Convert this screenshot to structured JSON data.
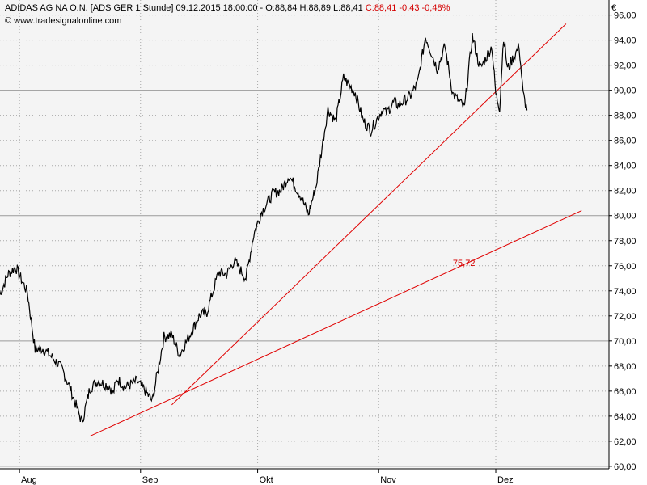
{
  "header": {
    "instrument": "ADIDAS AG NA O.N. [ADS GER",
    "interval": "1 Stunde]",
    "datetime": "09.12.2015 18:00:00",
    "ohl": "- O:88,84 H:88,89 L:88,41",
    "change": "C:88,41 -0,43 -0,48%",
    "source": "© www.tradesignalonline.com"
  },
  "currency": "€",
  "colors": {
    "background": "#f4f4f4",
    "price": "#000000",
    "trendline": "#e00000",
    "grid": "#a8a8a8",
    "separator": "#9a9a9a"
  },
  "chart_data": {
    "type": "line",
    "title": "ADIDAS AG NA O.N. [ADS GER 1 Stunde]",
    "x_ticks": [
      "Aug",
      "Sep",
      "Okt",
      "Nov",
      "Dez"
    ],
    "y_ticks": [
      "60,00",
      "62,00",
      "64,00",
      "66,00",
      "68,00",
      "70,00",
      "72,00",
      "74,00",
      "76,00",
      "78,00",
      "80,00",
      "82,00",
      "84,00",
      "86,00",
      "88,00",
      "90,00",
      "92,00",
      "94,00",
      "96,00"
    ],
    "ylim": [
      59.8,
      97.2
    ],
    "grid": true,
    "series": [
      {
        "x": [
          "2015-07-27",
          "2015-07-29",
          "2015-07-31",
          "2015-08-03",
          "2015-08-05",
          "2015-08-07",
          "2015-08-10",
          "2015-08-12",
          "2015-08-14",
          "2015-08-17",
          "2015-08-19",
          "2015-08-21",
          "2015-08-24",
          "2015-08-25",
          "2015-08-26",
          "2015-08-28",
          "2015-08-31",
          "2015-09-02",
          "2015-09-04",
          "2015-09-07",
          "2015-09-09",
          "2015-09-11",
          "2015-09-14",
          "2015-09-16",
          "2015-09-18",
          "2015-09-21",
          "2015-09-23",
          "2015-09-25",
          "2015-09-28",
          "2015-09-30",
          "2015-10-02",
          "2015-10-05",
          "2015-10-07",
          "2015-10-09",
          "2015-10-12",
          "2015-10-14",
          "2015-10-16",
          "2015-10-19",
          "2015-10-21",
          "2015-10-23",
          "2015-10-26",
          "2015-10-28",
          "2015-10-30",
          "2015-11-02",
          "2015-11-03",
          "2015-11-05",
          "2015-11-06",
          "2015-11-09",
          "2015-11-11",
          "2015-11-13",
          "2015-11-16",
          "2015-11-18",
          "2015-11-20",
          "2015-11-23",
          "2015-11-25",
          "2015-11-27",
          "2015-11-30",
          "2015-12-01",
          "2015-12-02",
          "2015-12-03",
          "2015-12-04",
          "2015-12-07",
          "2015-12-08",
          "2015-12-09"
        ],
        "values": [
          73.7,
          75.3,
          75.9,
          73.9,
          69.3,
          69.4,
          68.5,
          67.7,
          66.2,
          63.5,
          66.2,
          66.8,
          66.4,
          65.8,
          67.0,
          66.3,
          66.8,
          66.1,
          65.2,
          70.3,
          70.5,
          68.9,
          70.7,
          72.0,
          72.3,
          75.5,
          75.3,
          76.4,
          75.0,
          78.5,
          80.3,
          81.8,
          82.0,
          83.2,
          81.6,
          80.1,
          82.4,
          88.5,
          87.5,
          91.0,
          89.8,
          87.6,
          86.8,
          88.5,
          88.2,
          89.1,
          88.8,
          89.5,
          90.6,
          94.3,
          91.7,
          93.5,
          89.7,
          88.6,
          94.3,
          91.7,
          93.5,
          89.7,
          88.6,
          94.3,
          91.7,
          93.5,
          89.7,
          88.4
        ]
      }
    ],
    "trendlines": [
      {
        "x": [
          "2015-08-19",
          "2015-12-23"
        ],
        "values": [
          62.4,
          80.4
        ]
      },
      {
        "x": [
          "2015-09-09",
          "2015-12-19"
        ],
        "values": [
          64.9,
          95.3
        ]
      }
    ],
    "annotations": [
      {
        "text": "75,72",
        "x": "2015-11-20",
        "value": 75.72
      }
    ]
  }
}
